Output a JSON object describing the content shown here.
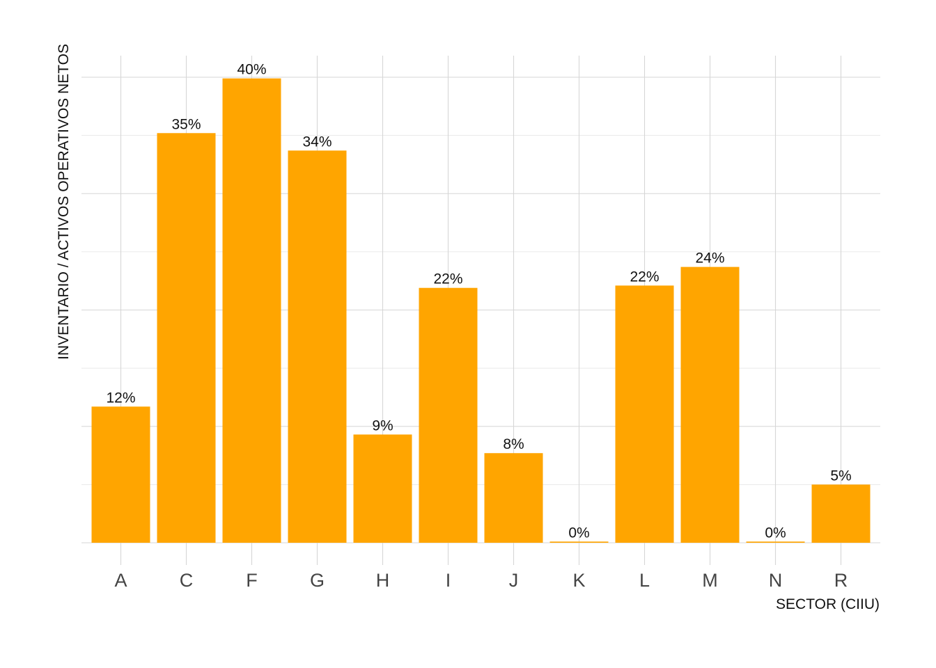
{
  "chart_data": {
    "type": "bar",
    "categories": [
      "A",
      "C",
      "F",
      "G",
      "H",
      "I",
      "J",
      "K",
      "L",
      "M",
      "N",
      "R"
    ],
    "values": [
      0.117,
      0.352,
      0.399,
      0.337,
      0.093,
      0.219,
      0.077,
      0.001,
      0.221,
      0.237,
      0.001,
      0.05
    ],
    "data_labels": [
      "12%",
      "35%",
      "40%",
      "34%",
      "9%",
      "22%",
      "8%",
      "0%",
      "22%",
      "24%",
      "0%",
      "5%"
    ],
    "xlabel": "SECTOR (CIIU)",
    "ylabel": "INVENTARIO / ACTIVOS OPERATIVOS NETOS",
    "ylim": [
      0,
      0.4
    ],
    "bar_color": "#FFA500",
    "grid": true,
    "y_tick_labels_shown": false
  }
}
